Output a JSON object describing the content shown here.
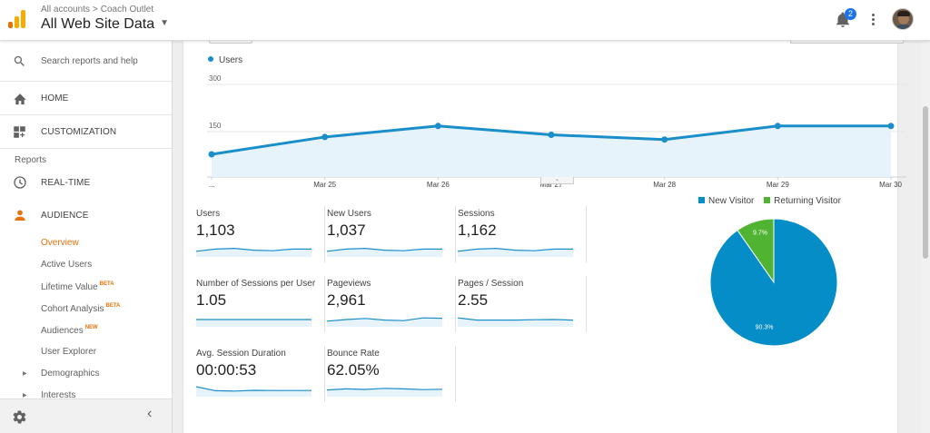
{
  "header": {
    "breadcrumb": [
      "All accounts",
      "Coach Outlet"
    ],
    "breadcrumb_sep": ">",
    "property": "All Web Site Data",
    "notification_count": "2"
  },
  "sidebar": {
    "search_placeholder": "Search reports and help",
    "home": "HOME",
    "customization": "CUSTOMIZATION",
    "reports_label": "Reports",
    "realtime": "REAL-TIME",
    "audience": "AUDIENCE",
    "audience_items": [
      {
        "label": "Overview",
        "tag": ""
      },
      {
        "label": "Active Users",
        "tag": ""
      },
      {
        "label": "Lifetime Value",
        "tag": "BETA"
      },
      {
        "label": "Cohort Analysis",
        "tag": "BETA"
      },
      {
        "label": "Audiences",
        "tag": "NEW"
      },
      {
        "label": "User Explorer",
        "tag": ""
      },
      {
        "label": "Demographics",
        "tag": ""
      },
      {
        "label": "Interests",
        "tag": ""
      }
    ]
  },
  "colors": {
    "accent": "#e8710a",
    "line": "#1a8ec8",
    "new_visitor": "#058dc7",
    "returning_visitor": "#50b432"
  },
  "chart_data": [
    {
      "type": "area",
      "series": [
        {
          "name": "Users",
          "values": [
            75,
            130,
            165,
            137,
            122,
            165,
            165
          ]
        }
      ],
      "categories": [
        "...",
        "Mar 25",
        "Mar 26",
        "Mar 27",
        "Mar 28",
        "Mar 29",
        "Mar 30"
      ],
      "y_ticks": [
        "300",
        "150"
      ],
      "ylim": [
        0,
        300
      ],
      "grid": true
    },
    {
      "type": "pie",
      "categories": [
        "New Visitor",
        "Returning Visitor"
      ],
      "values": [
        90.3,
        9.7
      ],
      "data_labels": [
        "90.3%",
        "9.7%"
      ],
      "legend": "top"
    }
  ],
  "metrics": [
    {
      "name": "Users",
      "value": "1,103",
      "trend": [
        0.35,
        0.55,
        0.62,
        0.45,
        0.4,
        0.55,
        0.55
      ]
    },
    {
      "name": "New Users",
      "value": "1,037",
      "trend": [
        0.35,
        0.55,
        0.62,
        0.45,
        0.4,
        0.55,
        0.55
      ]
    },
    {
      "name": "Sessions",
      "value": "1,162",
      "trend": [
        0.35,
        0.55,
        0.62,
        0.45,
        0.4,
        0.55,
        0.55
      ]
    },
    {
      "name": "Number of Sessions per User",
      "value": "1.05",
      "trend": [
        0.5,
        0.5,
        0.5,
        0.5,
        0.5,
        0.5,
        0.5
      ]
    },
    {
      "name": "Pageviews",
      "value": "2,961",
      "trend": [
        0.35,
        0.5,
        0.6,
        0.45,
        0.4,
        0.65,
        0.62
      ]
    },
    {
      "name": "Pages / Session",
      "value": "2.55",
      "trend": [
        0.65,
        0.45,
        0.45,
        0.45,
        0.48,
        0.5,
        0.45
      ]
    },
    {
      "name": "Avg. Session Duration",
      "value": "00:00:53",
      "trend": [
        0.75,
        0.38,
        0.35,
        0.42,
        0.4,
        0.4,
        0.4
      ]
    },
    {
      "name": "Bounce Rate",
      "value": "62.05%",
      "trend": [
        0.45,
        0.55,
        0.5,
        0.6,
        0.55,
        0.48,
        0.52
      ]
    }
  ]
}
